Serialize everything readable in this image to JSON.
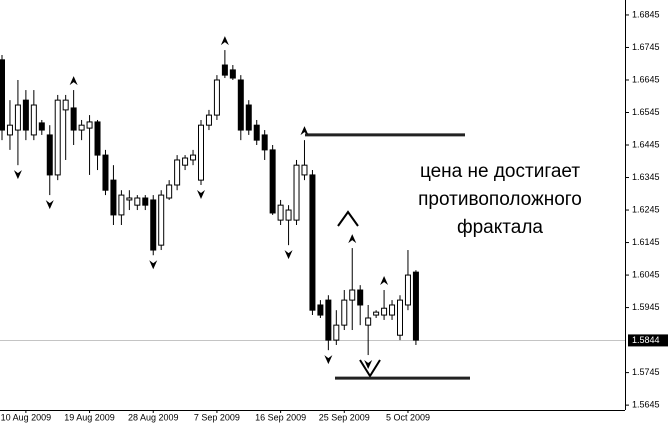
{
  "chart_data": {
    "type": "candlestick",
    "categories": [
      null,
      null,
      null,
      "10 Aug 2009",
      null,
      null,
      null,
      null,
      null,
      null,
      null,
      "19 Aug 2009",
      null,
      null,
      null,
      null,
      null,
      null,
      null,
      "28 Aug 2009",
      null,
      null,
      null,
      null,
      null,
      null,
      null,
      "7 Sep 2009",
      null,
      null,
      null,
      null,
      null,
      null,
      null,
      "16 Sep 2009",
      null,
      null,
      null,
      null,
      null,
      null,
      null,
      "25 Sep 2009",
      null,
      null,
      null,
      null,
      null,
      null,
      null,
      "5 Oct 2009",
      null
    ],
    "open": [
      1.6707,
      1.6476,
      1.6491,
      1.6583,
      1.6476,
      1.6513,
      1.6476,
      1.6353,
      1.6553,
      1.6559,
      1.6491,
      1.6497,
      1.6516,
      1.6414,
      1.6337,
      1.623,
      1.6276,
      1.626,
      1.6282,
      1.6276,
      1.6137,
      1.6282,
      1.6322,
      1.6383,
      1.6399,
      1.6337,
      1.6506,
      1.6537,
      1.6691,
      1.6676,
      1.6645,
      1.6568,
      1.6506,
      1.6476,
      1.643,
      1.6214,
      1.6214,
      1.6214,
      1.6353,
      1.6353,
      1.5953,
      1.5968,
      1.5845,
      1.5891,
      1.5968,
      1.5999,
      1.5891,
      1.5922,
      1.5922,
      1.5922,
      1.586,
      1.5953,
      1.6054
    ],
    "high": [
      1.6722,
      1.6583,
      1.6645,
      1.6614,
      1.6614,
      1.6522,
      1.6506,
      1.6599,
      1.6599,
      1.6614,
      1.6522,
      1.6537,
      1.6522,
      1.643,
      1.6383,
      1.6306,
      1.6306,
      1.6291,
      1.6291,
      1.6291,
      1.6306,
      1.6337,
      1.6414,
      1.6414,
      1.643,
      1.6522,
      1.6553,
      1.666,
      1.6737,
      1.6691,
      1.666,
      1.6583,
      1.6522,
      1.6491,
      1.6445,
      1.6276,
      1.626,
      1.6399,
      1.646,
      1.6368,
      1.5968,
      1.5983,
      1.5937,
      1.5999,
      1.6128,
      1.6014,
      1.5953,
      1.5937,
      1.5999,
      1.5968,
      1.5983,
      1.6122,
      1.606
    ],
    "low": [
      1.646,
      1.643,
      1.6383,
      1.646,
      1.646,
      1.6476,
      1.6291,
      1.6337,
      1.6399,
      1.6445,
      1.646,
      1.6353,
      1.6368,
      1.6291,
      1.6199,
      1.6199,
      1.6245,
      1.6245,
      1.6245,
      1.6106,
      1.6122,
      1.6276,
      1.6306,
      1.6368,
      1.6383,
      1.6322,
      1.6491,
      1.6522,
      1.6651,
      1.6645,
      1.646,
      1.6476,
      1.6445,
      1.6399,
      1.623,
      1.6199,
      1.6137,
      1.6199,
      1.6337,
      1.5922,
      1.5913,
      1.5814,
      1.583,
      1.5876,
      1.5876,
      1.5891,
      1.5799,
      1.5913,
      1.5907,
      1.5907,
      1.5845,
      1.5937,
      1.583
    ],
    "close": [
      1.6491,
      1.6506,
      1.6568,
      1.6491,
      1.6568,
      1.6491,
      1.6353,
      1.6583,
      1.6583,
      1.6491,
      1.6506,
      1.6516,
      1.6414,
      1.6306,
      1.623,
      1.6291,
      1.6282,
      1.6282,
      1.626,
      1.6122,
      1.6291,
      1.6322,
      1.6399,
      1.6405,
      1.6414,
      1.6506,
      1.6537,
      1.6645,
      1.666,
      1.6651,
      1.6491,
      1.6491,
      1.646,
      1.643,
      1.6236,
      1.626,
      1.6245,
      1.6383,
      1.6383,
      1.5937,
      1.5922,
      1.5845,
      1.5891,
      1.5968,
      1.5999,
      1.5953,
      1.5913,
      1.5931,
      1.5943,
      1.5953,
      1.5968,
      1.6045,
      1.5845
    ],
    "ylim": [
      1.563,
      1.6891
    ],
    "yticks": [
      1.6845,
      1.6745,
      1.6645,
      1.6545,
      1.6445,
      1.6345,
      1.6245,
      1.6145,
      1.6045,
      1.5945,
      1.5745,
      1.5645
    ],
    "last_price": 1.5844,
    "levels": [
      1.6476,
      1.5728
    ],
    "annotation": [
      "цена не достигает",
      "противоположного",
      "фрактала"
    ]
  }
}
